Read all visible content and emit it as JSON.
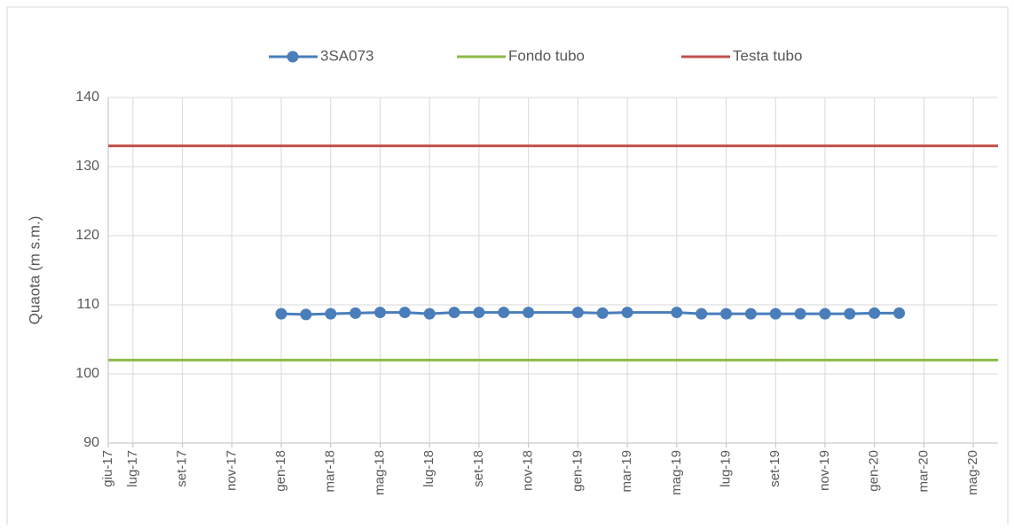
{
  "chart_data": {
    "type": "line",
    "y_label": "Quaota (m s.m.)",
    "legend": "top",
    "grid": true,
    "xlim": [
      "2017-06",
      "2020-06"
    ],
    "xticks": [
      {
        "value": "2017-06",
        "label": "giu-17"
      },
      {
        "value": "2017-07",
        "label": "lug-17"
      },
      {
        "value": "2017-09",
        "label": "set-17"
      },
      {
        "value": "2017-11",
        "label": "nov-17"
      },
      {
        "value": "2018-01",
        "label": "gen-18"
      },
      {
        "value": "2018-03",
        "label": "mar-18"
      },
      {
        "value": "2018-05",
        "label": "mag-18"
      },
      {
        "value": "2018-07",
        "label": "lug-18"
      },
      {
        "value": "2018-09",
        "label": "set-18"
      },
      {
        "value": "2018-11",
        "label": "nov-18"
      },
      {
        "value": "2019-01",
        "label": "gen-19"
      },
      {
        "value": "2019-03",
        "label": "mar-19"
      },
      {
        "value": "2019-05",
        "label": "mag-19"
      },
      {
        "value": "2019-07",
        "label": "lug-19"
      },
      {
        "value": "2019-09",
        "label": "set-19"
      },
      {
        "value": "2019-11",
        "label": "nov-19"
      },
      {
        "value": "2020-01",
        "label": "gen-20"
      },
      {
        "value": "2020-03",
        "label": "mar-20"
      },
      {
        "value": "2020-05",
        "label": "mag-20"
      }
    ],
    "ylim": [
      90,
      140
    ],
    "yticks": [
      90,
      100,
      110,
      120,
      130,
      140
    ],
    "series": [
      {
        "name": "3SA073",
        "color": "#4a7ebb",
        "markers": true,
        "x": [
          "2018-01",
          "2018-02",
          "2018-03",
          "2018-04",
          "2018-05",
          "2018-06",
          "2018-07",
          "2018-08",
          "2018-09",
          "2018-10",
          "2018-11",
          "2019-01",
          "2019-02",
          "2019-03",
          "2019-05",
          "2019-06",
          "2019-07",
          "2019-08",
          "2019-09",
          "2019-10",
          "2019-11",
          "2019-12",
          "2020-01",
          "2020-02"
        ],
        "values": [
          108.7,
          108.6,
          108.7,
          108.8,
          108.9,
          108.9,
          108.7,
          108.9,
          108.9,
          108.9,
          108.9,
          108.9,
          108.8,
          108.9,
          108.9,
          108.7,
          108.7,
          108.7,
          108.7,
          108.7,
          108.7,
          108.7,
          108.8,
          108.8
        ]
      },
      {
        "name": "Fondo tubo",
        "color": "#8cba4a",
        "markers": false,
        "x": [
          "2017-06",
          "2020-06"
        ],
        "values": [
          102,
          102
        ]
      },
      {
        "name": "Testa tubo",
        "color": "#c0504d",
        "markers": false,
        "x": [
          "2017-06",
          "2020-06"
        ],
        "values": [
          133,
          133
        ]
      }
    ]
  }
}
